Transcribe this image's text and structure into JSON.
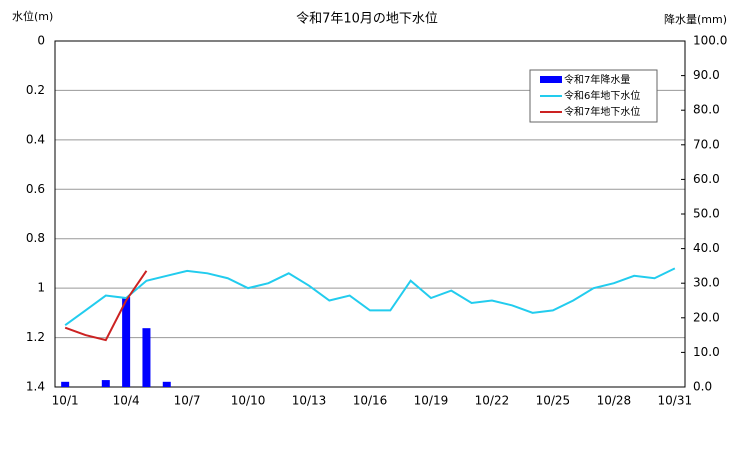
{
  "chart_data": {
    "type": "combo",
    "title": "令和7年10月の地下水位",
    "y_label": "水位(m)",
    "y2_label": "降水量(mm)",
    "categories": [
      "10/1",
      null,
      null,
      "10/4",
      null,
      null,
      "10/7",
      null,
      null,
      "10/10",
      null,
      null,
      "10/13",
      null,
      null,
      "10/16",
      null,
      null,
      "10/19",
      null,
      null,
      "10/22",
      null,
      null,
      "10/25",
      null,
      null,
      "10/28",
      null,
      null,
      "10/31"
    ],
    "ylim": [
      1.4,
      0
    ],
    "yticks": [
      0,
      0.2,
      0.4,
      0.6,
      0.8,
      1,
      1.2,
      1.4
    ],
    "y2lim": [
      0,
      100
    ],
    "y2ticks": [
      {
        "value": 0,
        "label": "0.0"
      },
      {
        "value": 10,
        "label": "10.0"
      },
      {
        "value": 20,
        "label": "20.0"
      },
      {
        "value": 30,
        "label": "30.0"
      },
      {
        "value": 40,
        "label": "40.0"
      },
      {
        "value": 50,
        "label": "50.0"
      },
      {
        "value": 60,
        "label": "60.0"
      },
      {
        "value": 70,
        "label": "70.0"
      },
      {
        "value": 80,
        "label": "80.0"
      },
      {
        "value": 90,
        "label": "90.0"
      },
      {
        "value": 100,
        "label": "100.0"
      }
    ],
    "grid": true,
    "legend": "upper right",
    "series": [
      {
        "name": "令和7年降水量",
        "type": "bar",
        "axis": "y2",
        "color": "#0000ff",
        "values": [
          1.5,
          0,
          2,
          26,
          17,
          1.5,
          0,
          0,
          0,
          0,
          0,
          0,
          0,
          0,
          0,
          0,
          0,
          0,
          0,
          0,
          0,
          0,
          0,
          0,
          0,
          0,
          0,
          0,
          0,
          0,
          0
        ]
      },
      {
        "name": "令和6年地下水位",
        "type": "line",
        "axis": "y",
        "color": "#22ccee",
        "values": [
          1.15,
          1.09,
          1.03,
          1.04,
          0.97,
          0.95,
          0.93,
          0.94,
          0.96,
          1.0,
          0.98,
          0.94,
          0.99,
          1.05,
          1.03,
          1.09,
          1.09,
          0.97,
          1.04,
          1.01,
          1.06,
          1.05,
          1.07,
          1.1,
          1.09,
          1.05,
          1.0,
          0.98,
          0.95,
          0.96,
          0.92
        ]
      },
      {
        "name": "令和7年地下水位",
        "type": "line",
        "axis": "y",
        "color": "#cc2222",
        "values": [
          1.16,
          1.19,
          1.21,
          1.05,
          0.93,
          null,
          null,
          null,
          null,
          null,
          null,
          null,
          null,
          null,
          null,
          null,
          null,
          null,
          null,
          null,
          null,
          null,
          null,
          null,
          null,
          null,
          null,
          null,
          null,
          null,
          null
        ]
      }
    ]
  }
}
